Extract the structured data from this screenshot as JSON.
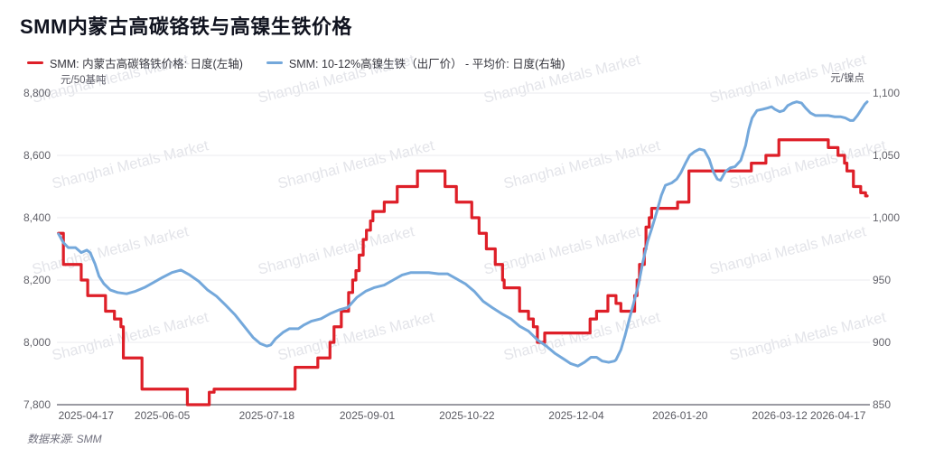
{
  "header": {
    "title": "SMM内蒙古高碳铬铁与高镍生铁价格"
  },
  "legend": [
    {
      "label": "SMM: 内蒙古高碳铬铁价格: 日度(左轴)",
      "color": "#de1f28"
    },
    {
      "label": "SMM: 10-12%高镍生铁（出厂价） - 平均价: 日度(右轴)",
      "color": "#74a8db"
    }
  ],
  "watermark": {
    "text": "Shanghai Metals Market"
  },
  "footer": {
    "source": "数据来源: SMM"
  },
  "chart_data": {
    "type": "line",
    "title": "SMM内蒙古高碳铬铁与高镍生铁价格",
    "grid": true,
    "legend_position": "top-left",
    "left_axis": {
      "unit": "元/50基吨",
      "min": 7800,
      "max": 8800,
      "ticks": [
        "8,800",
        "8,600",
        "8,400",
        "8,200",
        "8,000",
        "7,800"
      ]
    },
    "right_axis": {
      "unit": "元/镍点",
      "min": 850,
      "max": 1100,
      "ticks": [
        "1,100",
        "1,050",
        "1,000",
        "950",
        "900",
        "850"
      ]
    },
    "x_axis": {
      "labels": [
        {
          "text": "2025-04-17",
          "pos": 0.036
        },
        {
          "text": "2025-06-05",
          "pos": 0.13
        },
        {
          "text": "2025-07-18",
          "pos": 0.259
        },
        {
          "text": "2025-09-01",
          "pos": 0.383
        },
        {
          "text": "2025-10-22",
          "pos": 0.506
        },
        {
          "text": "2025-12-04",
          "pos": 0.641
        },
        {
          "text": "2026-01-20",
          "pos": 0.769
        },
        {
          "text": "2026-03-12",
          "pos": 0.892
        },
        {
          "text": "2026-04-17",
          "pos": 0.964
        }
      ]
    },
    "series": [
      {
        "name": "SMM: 内蒙古高碳铬铁价格: 日度(左轴)",
        "axis": "left",
        "color": "#de1f28",
        "style": "step",
        "width": 3.2,
        "points": [
          [
            0.002,
            8350
          ],
          [
            0.008,
            8250
          ],
          [
            0.03,
            8200
          ],
          [
            0.038,
            8150
          ],
          [
            0.06,
            8100
          ],
          [
            0.071,
            8075
          ],
          [
            0.079,
            8050
          ],
          [
            0.082,
            7950
          ],
          [
            0.105,
            7850
          ],
          [
            0.161,
            7800
          ],
          [
            0.188,
            7840
          ],
          [
            0.194,
            7850
          ],
          [
            0.294,
            7920
          ],
          [
            0.322,
            7950
          ],
          [
            0.337,
            8000
          ],
          [
            0.342,
            8050
          ],
          [
            0.351,
            8100
          ],
          [
            0.36,
            8160
          ],
          [
            0.365,
            8200
          ],
          [
            0.369,
            8230
          ],
          [
            0.373,
            8280
          ],
          [
            0.378,
            8330
          ],
          [
            0.382,
            8360
          ],
          [
            0.387,
            8390
          ],
          [
            0.39,
            8420
          ],
          [
            0.404,
            8450
          ],
          [
            0.42,
            8500
          ],
          [
            0.445,
            8550
          ],
          [
            0.479,
            8500
          ],
          [
            0.493,
            8450
          ],
          [
            0.512,
            8400
          ],
          [
            0.521,
            8350
          ],
          [
            0.53,
            8300
          ],
          [
            0.541,
            8250
          ],
          [
            0.55,
            8200
          ],
          [
            0.552,
            8175
          ],
          [
            0.571,
            8100
          ],
          [
            0.582,
            8075
          ],
          [
            0.588,
            8050
          ],
          [
            0.593,
            8000
          ],
          [
            0.602,
            8030
          ],
          [
            0.658,
            8075
          ],
          [
            0.666,
            8100
          ],
          [
            0.68,
            8150
          ],
          [
            0.69,
            8125
          ],
          [
            0.696,
            8100
          ],
          [
            0.713,
            8150
          ],
          [
            0.716,
            8200
          ],
          [
            0.719,
            8250
          ],
          [
            0.725,
            8300
          ],
          [
            0.727,
            8370
          ],
          [
            0.731,
            8400
          ],
          [
            0.734,
            8430
          ],
          [
            0.766,
            8450
          ],
          [
            0.78,
            8550
          ],
          [
            0.857,
            8575
          ],
          [
            0.875,
            8600
          ],
          [
            0.891,
            8650
          ],
          [
            0.952,
            8625
          ],
          [
            0.964,
            8600
          ],
          [
            0.972,
            8575
          ],
          [
            0.975,
            8550
          ],
          [
            0.983,
            8500
          ],
          [
            0.992,
            8480
          ],
          [
            0.998,
            8470
          ],
          [
            1.0,
            8470
          ]
        ]
      },
      {
        "name": "SMM: 10-12%高镍生铁（出厂价） - 平均价: 日度(右轴)",
        "axis": "right",
        "color": "#74a8db",
        "style": "line",
        "width": 3,
        "points": [
          [
            0.002,
            987
          ],
          [
            0.008,
            980
          ],
          [
            0.014,
            976
          ],
          [
            0.023,
            976
          ],
          [
            0.03,
            972
          ],
          [
            0.037,
            974
          ],
          [
            0.041,
            972
          ],
          [
            0.047,
            963
          ],
          [
            0.052,
            953
          ],
          [
            0.058,
            947
          ],
          [
            0.066,
            942
          ],
          [
            0.075,
            940
          ],
          [
            0.086,
            939
          ],
          [
            0.097,
            941
          ],
          [
            0.108,
            944
          ],
          [
            0.119,
            948
          ],
          [
            0.13,
            952
          ],
          [
            0.142,
            956
          ],
          [
            0.153,
            958
          ],
          [
            0.164,
            954
          ],
          [
            0.175,
            949
          ],
          [
            0.186,
            942
          ],
          [
            0.197,
            937
          ],
          [
            0.208,
            930
          ],
          [
            0.22,
            922
          ],
          [
            0.231,
            913
          ],
          [
            0.242,
            904
          ],
          [
            0.251,
            899
          ],
          [
            0.259,
            897
          ],
          [
            0.264,
            898
          ],
          [
            0.27,
            903
          ],
          [
            0.279,
            908
          ],
          [
            0.287,
            911
          ],
          [
            0.298,
            911
          ],
          [
            0.305,
            914
          ],
          [
            0.314,
            917
          ],
          [
            0.326,
            919
          ],
          [
            0.337,
            923
          ],
          [
            0.348,
            926
          ],
          [
            0.359,
            928
          ],
          [
            0.37,
            936
          ],
          [
            0.381,
            941
          ],
          [
            0.392,
            944
          ],
          [
            0.404,
            946
          ],
          [
            0.415,
            950
          ],
          [
            0.426,
            954
          ],
          [
            0.437,
            956
          ],
          [
            0.448,
            956
          ],
          [
            0.459,
            956
          ],
          [
            0.471,
            955
          ],
          [
            0.482,
            955
          ],
          [
            0.493,
            951
          ],
          [
            0.504,
            947
          ],
          [
            0.515,
            941
          ],
          [
            0.526,
            933
          ],
          [
            0.537,
            928
          ],
          [
            0.549,
            923
          ],
          [
            0.56,
            919
          ],
          [
            0.571,
            913
          ],
          [
            0.582,
            909
          ],
          [
            0.593,
            902
          ],
          [
            0.604,
            897
          ],
          [
            0.615,
            891
          ],
          [
            0.627,
            886
          ],
          [
            0.634,
            883
          ],
          [
            0.643,
            881
          ],
          [
            0.651,
            884
          ],
          [
            0.659,
            888
          ],
          [
            0.666,
            888
          ],
          [
            0.673,
            885
          ],
          [
            0.681,
            884
          ],
          [
            0.688,
            885
          ],
          [
            0.69,
            886
          ],
          [
            0.696,
            894
          ],
          [
            0.701,
            905
          ],
          [
            0.707,
            920
          ],
          [
            0.712,
            932
          ],
          [
            0.718,
            947
          ],
          [
            0.723,
            964
          ],
          [
            0.729,
            981
          ],
          [
            0.734,
            991
          ],
          [
            0.74,
            1004
          ],
          [
            0.746,
            1018
          ],
          [
            0.751,
            1026
          ],
          [
            0.759,
            1028
          ],
          [
            0.765,
            1031
          ],
          [
            0.77,
            1036
          ],
          [
            0.776,
            1044
          ],
          [
            0.781,
            1050
          ],
          [
            0.787,
            1053
          ],
          [
            0.793,
            1055
          ],
          [
            0.799,
            1054
          ],
          [
            0.805,
            1047
          ],
          [
            0.81,
            1037
          ],
          [
            0.815,
            1031
          ],
          [
            0.819,
            1030
          ],
          [
            0.825,
            1037
          ],
          [
            0.831,
            1040
          ],
          [
            0.837,
            1041
          ],
          [
            0.844,
            1046
          ],
          [
            0.85,
            1058
          ],
          [
            0.854,
            1071
          ],
          [
            0.858,
            1080
          ],
          [
            0.864,
            1086
          ],
          [
            0.871,
            1087
          ],
          [
            0.877,
            1088
          ],
          [
            0.882,
            1089
          ],
          [
            0.886,
            1087
          ],
          [
            0.892,
            1085
          ],
          [
            0.897,
            1086
          ],
          [
            0.902,
            1090
          ],
          [
            0.908,
            1092
          ],
          [
            0.913,
            1093
          ],
          [
            0.919,
            1092
          ],
          [
            0.924,
            1088
          ],
          [
            0.93,
            1084
          ],
          [
            0.936,
            1082
          ],
          [
            0.944,
            1082
          ],
          [
            0.952,
            1082
          ],
          [
            0.96,
            1081
          ],
          [
            0.967,
            1081
          ],
          [
            0.973,
            1080
          ],
          [
            0.979,
            1078
          ],
          [
            0.983,
            1078
          ],
          [
            0.988,
            1082
          ],
          [
            0.992,
            1086
          ],
          [
            0.997,
            1091
          ],
          [
            1.0,
            1093
          ]
        ]
      }
    ]
  }
}
